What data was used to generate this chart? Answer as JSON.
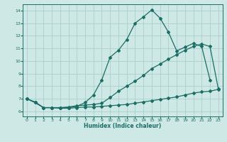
{
  "xlabel": "Humidex (Indice chaleur)",
  "xlim": [
    -0.5,
    23.5
  ],
  "ylim": [
    5.6,
    14.5
  ],
  "xticks": [
    0,
    1,
    2,
    3,
    4,
    5,
    6,
    7,
    8,
    9,
    10,
    11,
    12,
    13,
    14,
    15,
    16,
    17,
    18,
    19,
    20,
    21,
    22,
    23
  ],
  "yticks": [
    6,
    7,
    8,
    9,
    10,
    11,
    12,
    13,
    14
  ],
  "bg_color": "#cde8e5",
  "grid_color": "#aacfcc",
  "line_color": "#1a6e65",
  "line1_x": [
    0,
    1,
    2,
    3,
    4,
    5,
    6,
    7,
    8,
    9,
    10,
    11,
    12,
    13,
    14,
    15,
    16,
    17,
    18,
    19,
    20,
    21,
    22
  ],
  "line1_y": [
    7.0,
    6.7,
    6.3,
    6.3,
    6.3,
    6.3,
    6.4,
    6.7,
    7.3,
    8.5,
    10.3,
    10.85,
    11.7,
    13.0,
    13.5,
    14.05,
    13.4,
    12.3,
    10.8,
    11.1,
    11.4,
    11.15,
    8.5
  ],
  "line2_x": [
    0,
    1,
    2,
    3,
    4,
    5,
    6,
    7,
    8,
    9,
    10,
    11,
    12,
    13,
    14,
    15,
    16,
    17,
    18,
    19,
    20,
    21,
    22,
    23
  ],
  "line2_y": [
    7.0,
    6.75,
    6.3,
    6.3,
    6.3,
    6.35,
    6.45,
    6.5,
    6.55,
    6.65,
    7.1,
    7.6,
    8.0,
    8.4,
    8.85,
    9.4,
    9.75,
    10.15,
    10.5,
    10.85,
    11.15,
    11.35,
    11.15,
    7.8
  ],
  "line3_x": [
    0,
    1,
    2,
    3,
    4,
    5,
    6,
    7,
    8,
    9,
    10,
    11,
    12,
    13,
    14,
    15,
    16,
    17,
    18,
    19,
    20,
    21,
    22,
    23
  ],
  "line3_y": [
    7.0,
    6.7,
    6.3,
    6.3,
    6.25,
    6.25,
    6.3,
    6.35,
    6.35,
    6.4,
    6.45,
    6.5,
    6.55,
    6.65,
    6.75,
    6.85,
    6.95,
    7.05,
    7.15,
    7.3,
    7.45,
    7.55,
    7.6,
    7.75
  ],
  "marker": "D",
  "markersize": 2.0,
  "linewidth": 0.9
}
